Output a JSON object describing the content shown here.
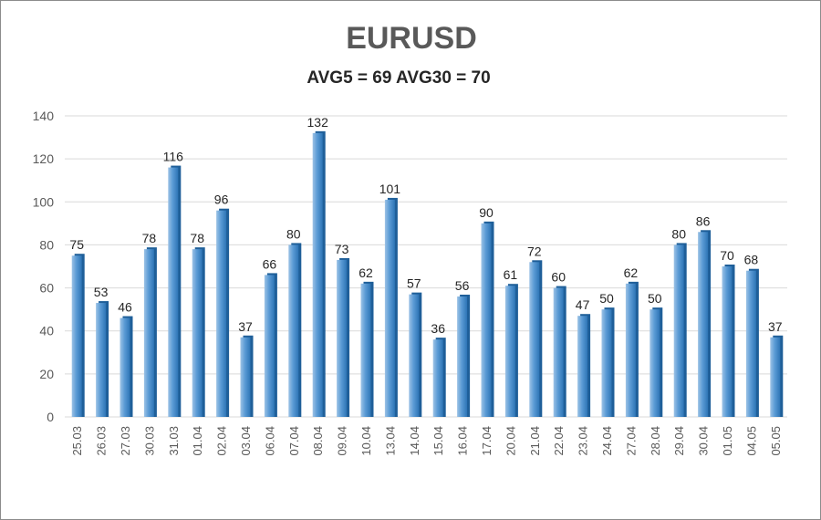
{
  "chart_data": {
    "type": "bar",
    "title": "EURUSD",
    "subtitle": "AVG5 = 69 AVG30 = 70",
    "categories": [
      "25.03",
      "26.03",
      "27.03",
      "30.03",
      "31.03",
      "01.04",
      "02.04",
      "03.04",
      "06.04",
      "07.04",
      "08.04",
      "09.04",
      "10.04",
      "13.04",
      "14.04",
      "15.04",
      "16.04",
      "17.04",
      "20.04",
      "21.04",
      "22.04",
      "23.04",
      "24.04",
      "27.04",
      "28.04",
      "29.04",
      "30.04",
      "01.05",
      "04.05",
      "05.05"
    ],
    "values": [
      75,
      53,
      46,
      78,
      116,
      78,
      96,
      37,
      66,
      80,
      132,
      73,
      62,
      101,
      57,
      36,
      56,
      90,
      61,
      72,
      60,
      47,
      50,
      62,
      50,
      80,
      86,
      70,
      68,
      37
    ],
    "ylim": [
      0,
      140
    ],
    "yticks": [
      0,
      20,
      40,
      60,
      80,
      100,
      120,
      140
    ],
    "grid": true,
    "legend": "none",
    "colors": {
      "bar": "#5b9bd5",
      "bar_dark": "#2e75b6",
      "bar_light": "#9dc3e6",
      "grid": "#d9d9d9"
    }
  }
}
